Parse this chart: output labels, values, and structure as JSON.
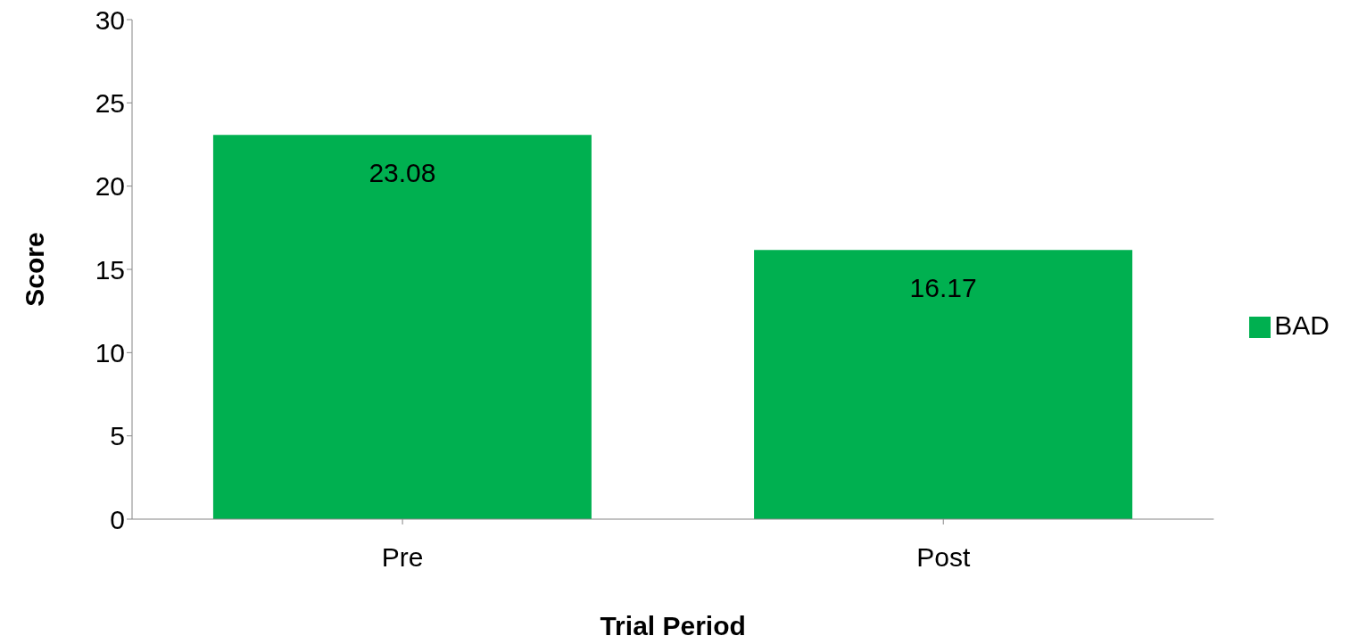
{
  "chart_data": {
    "type": "bar",
    "xlabel": "Trial Period",
    "ylabel": "Score",
    "categories": [
      "Pre",
      "Post"
    ],
    "series": [
      {
        "name": "BAD",
        "color": "#00b050",
        "values": [
          23.08,
          16.17
        ]
      }
    ],
    "ylim": [
      0,
      30
    ],
    "yticks": [
      0,
      5,
      10,
      15,
      20,
      25,
      30
    ],
    "data_labels": true,
    "grid": false,
    "legend": "right"
  }
}
